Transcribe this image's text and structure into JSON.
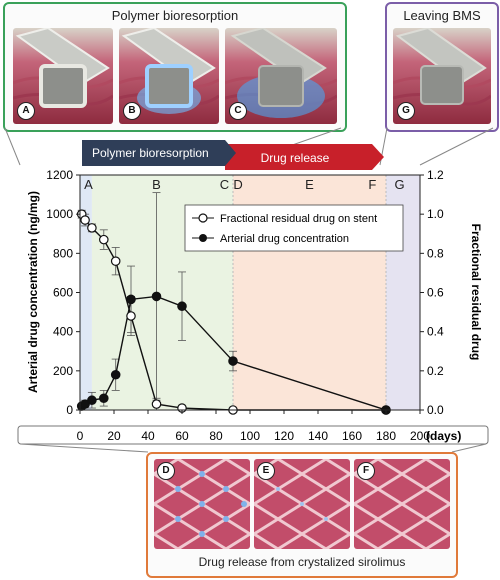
{
  "top_panels": {
    "polymer": {
      "title": "Polymer bioresorption",
      "labels": [
        "A",
        "B",
        "C"
      ]
    },
    "leaving": {
      "title": "Leaving BMS",
      "labels": [
        "G"
      ]
    }
  },
  "bottom_panel": {
    "caption": "Drug release from crystalized sirolimus",
    "labels": [
      "D",
      "E",
      "F"
    ]
  },
  "phase_arrows": {
    "bioresorption": "Polymer bioresorption",
    "release": "Drug release"
  },
  "colors": {
    "green_frame": "#3aa15a",
    "purple_frame": "#7b5ea8",
    "orange_frame": "#e07a3a",
    "arrow_dark": "#2f3e58",
    "arrow_red": "#c8202a",
    "shade_blue": "#dfe8f5",
    "shade_green": "#eaf3e2",
    "shade_orange": "#fbe5d8",
    "shade_purple": "#e5e3f1"
  },
  "chart_data": {
    "type": "line",
    "xlim": [
      0,
      200
    ],
    "x_ticks": [
      "0",
      "20",
      "40",
      "60",
      "80",
      "100",
      "120",
      "140",
      "160",
      "180",
      "200"
    ],
    "x_unit": "(days)",
    "left_axis": {
      "label": "Arterial drug concentration (ng/mg)",
      "ylim": [
        0,
        1200
      ],
      "ticks": [
        "0",
        "200",
        "400",
        "600",
        "800",
        "1000",
        "1200"
      ]
    },
    "right_axis": {
      "label": "Fractional residual drug",
      "ylim": [
        0,
        1.2
      ],
      "ticks": [
        "0.0",
        "0.2",
        "0.4",
        "0.6",
        "0.8",
        "1.0",
        "1.2"
      ]
    },
    "phase_letters": [
      {
        "label": "A",
        "x": 5
      },
      {
        "label": "B",
        "x": 45
      },
      {
        "label": "C",
        "x": 85
      },
      {
        "label": "D",
        "x": 93
      },
      {
        "label": "E",
        "x": 135
      },
      {
        "label": "F",
        "x": 172
      },
      {
        "label": "G",
        "x": 188
      }
    ],
    "phase_regions": [
      {
        "from": 0,
        "to": 7,
        "color": "#dfe8f5"
      },
      {
        "from": 7,
        "to": 90,
        "color": "#eaf3e2"
      },
      {
        "from": 90,
        "to": 180,
        "color": "#fbe5d8"
      },
      {
        "from": 180,
        "to": 200,
        "color": "#e5e3f1"
      }
    ],
    "legend_position": "upper-right",
    "series": [
      {
        "name": "Fractional residual drug on stent",
        "axis": "right",
        "marker": "open-circle",
        "x": [
          1,
          3,
          7,
          14,
          21,
          30,
          45,
          60,
          90,
          180
        ],
        "y": [
          1.0,
          0.97,
          0.93,
          0.87,
          0.76,
          0.48,
          0.03,
          0.01,
          0.0,
          0.0
        ],
        "err": [
          0.02,
          0.03,
          0.02,
          0.05,
          0.07,
          0.1,
          0.03,
          0.01,
          0.0,
          0.0
        ]
      },
      {
        "name": "Arterial drug concentration",
        "axis": "left",
        "marker": "filled-circle",
        "x": [
          1,
          3,
          7,
          14,
          21,
          30,
          45,
          60,
          90,
          180
        ],
        "y": [
          20,
          30,
          50,
          60,
          180,
          565,
          580,
          530,
          250,
          0
        ],
        "err": [
          10,
          20,
          40,
          40,
          80,
          170,
          530,
          175,
          50,
          5
        ]
      }
    ]
  }
}
